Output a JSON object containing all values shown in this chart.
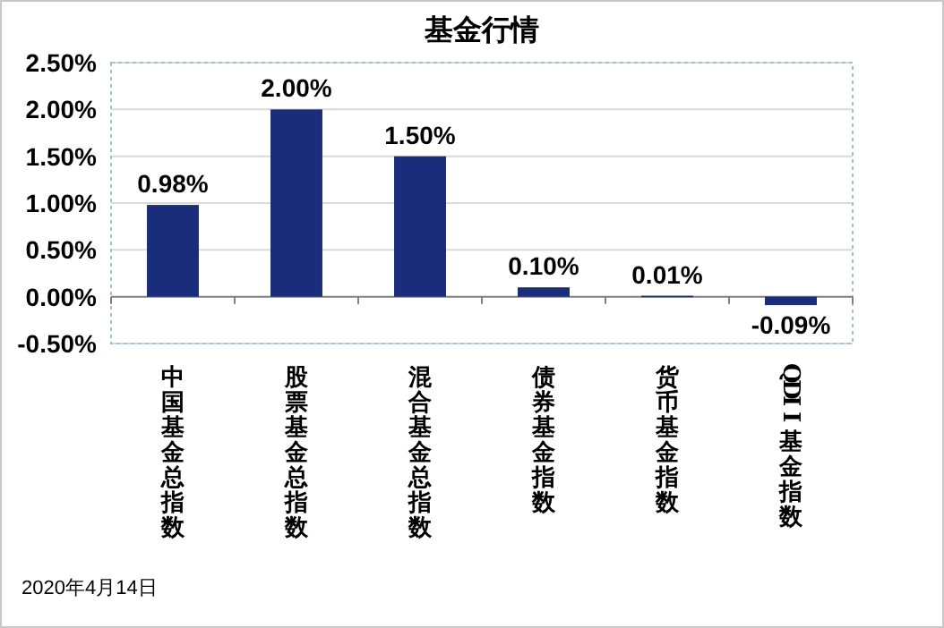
{
  "chart_data": {
    "type": "bar",
    "title": "基金行情",
    "categories": [
      "中国基金总指数",
      "股票基金总指数",
      "混合基金总指数",
      "债券基金指数",
      "货币基金指数",
      "QDII基金指数"
    ],
    "values": [
      0.98,
      2.0,
      1.5,
      0.1,
      0.01,
      -0.09
    ],
    "value_labels": [
      "0.98%",
      "2.00%",
      "1.50%",
      "0.10%",
      "0.01%",
      "-0.09%"
    ],
    "color": "#1a2d7a",
    "ylim": [
      -0.5,
      2.5
    ],
    "yticks": [
      {
        "value": -0.5,
        "label": "-0.50%"
      },
      {
        "value": 0,
        "label": "0.00%"
      },
      {
        "value": 0.5,
        "label": "0.50%"
      },
      {
        "value": 1,
        "label": "1.00%"
      },
      {
        "value": 1.5,
        "label": "1.50%"
      },
      {
        "value": 2,
        "label": "2.00%"
      },
      {
        "value": 2.5,
        "label": "2.50%"
      }
    ],
    "grid": "y",
    "annotations": [
      "2020年4月14日"
    ]
  }
}
